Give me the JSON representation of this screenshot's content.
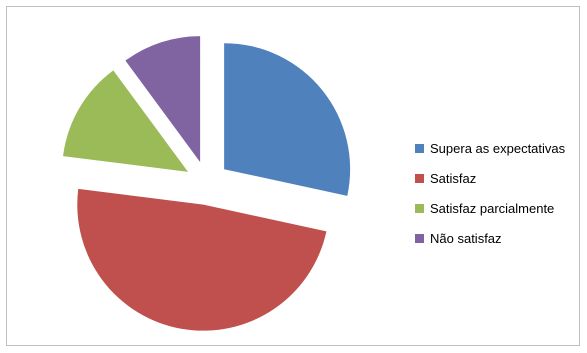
{
  "chart_data": {
    "type": "pie",
    "title": "",
    "exploded": true,
    "legend_position": "right",
    "start_angle": "top",
    "direction": "clockwise",
    "slices": [
      {
        "label": "Supera as expectativas",
        "value": 28.4,
        "color": "#4F81BD"
      },
      {
        "label": "Satisfaz",
        "value": 48.6,
        "color": "#C0504D"
      },
      {
        "label": "Satisfaz parcialmente",
        "value": 12.9,
        "color": "#9BBB59"
      },
      {
        "label": "Não satisfaz",
        "value": 10.1,
        "color": "#8064A2"
      }
    ]
  }
}
